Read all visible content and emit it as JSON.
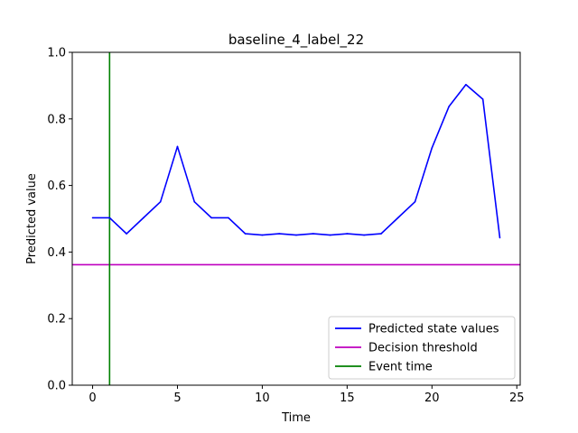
{
  "chart_data": {
    "type": "line",
    "title": "baseline_4_label_22",
    "xlabel": "Time",
    "ylabel": "Predicted value",
    "xlim": [
      -1.2,
      25.2
    ],
    "ylim": [
      0.0,
      1.0
    ],
    "xticks": [
      0,
      5,
      10,
      15,
      20,
      25
    ],
    "yticks": [
      0.0,
      0.2,
      0.4,
      0.6,
      0.8,
      1.0
    ],
    "xtick_labels": [
      "0",
      "5",
      "10",
      "15",
      "20",
      "25"
    ],
    "ytick_labels": [
      "0.0",
      "0.2",
      "0.4",
      "0.6",
      "0.8",
      "1.0"
    ],
    "grid": false,
    "legend_position": "lower-right",
    "series": [
      {
        "name": "Predicted state values",
        "color": "#0000ff",
        "x": [
          0,
          1,
          2,
          3,
          4,
          5,
          6,
          7,
          8,
          9,
          10,
          11,
          12,
          13,
          14,
          15,
          16,
          17,
          18,
          19,
          20,
          21,
          22,
          23,
          24
        ],
        "y": [
          0.503,
          0.503,
          0.455,
          0.503,
          0.551,
          0.717,
          0.551,
          0.503,
          0.503,
          0.455,
          0.451,
          0.455,
          0.451,
          0.455,
          0.451,
          0.455,
          0.451,
          0.455,
          0.503,
          0.551,
          0.713,
          0.837,
          0.903,
          0.859,
          0.443
        ]
      }
    ],
    "hlines": [
      {
        "name": "Decision threshold",
        "color": "#bf00bf",
        "y": 0.362
      }
    ],
    "vlines": [
      {
        "name": "Event time",
        "color": "#008000",
        "x": 1
      }
    ]
  }
}
